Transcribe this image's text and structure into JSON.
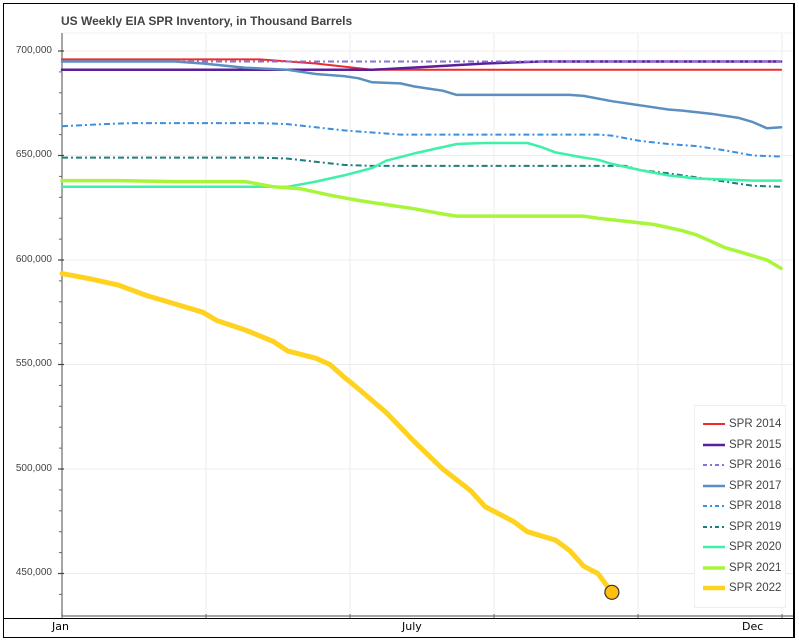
{
  "chart_data": {
    "type": "line",
    "title": "US Weekly EIA SPR Inventory, in Thousand Barrels",
    "xlabel": "",
    "ylabel": "",
    "x_tick_labels": [
      {
        "label": "Jan",
        "week": 0
      },
      {
        "label": "July",
        "week": 24
      },
      {
        "label": "Dec",
        "week": 48
      }
    ],
    "x_range_weeks": [
      0,
      51
    ],
    "y_tick_labels": [
      "450,000",
      "500,000",
      "550,000",
      "600,000",
      "650,000",
      "700,000"
    ],
    "y_ticks": [
      450000,
      500000,
      550000,
      600000,
      650000,
      700000
    ],
    "ylim": [
      430000,
      709000
    ],
    "grid": true,
    "legend_position": "bottom-right",
    "series": [
      {
        "name": "SPR 2014",
        "color": "#ee2b2b",
        "dash": "solid",
        "width": 2,
        "points": [
          [
            0,
            696
          ],
          [
            14,
            696
          ],
          [
            18,
            694
          ],
          [
            22,
            691
          ],
          [
            25,
            691
          ],
          [
            51,
            691
          ]
        ]
      },
      {
        "name": "SPR 2015",
        "color": "#5b1f99",
        "dash": "solid",
        "width": 2.5,
        "points": [
          [
            0,
            691
          ],
          [
            18,
            691
          ],
          [
            22,
            691
          ],
          [
            26,
            692.5
          ],
          [
            30,
            694
          ],
          [
            34,
            695
          ],
          [
            51,
            695
          ]
        ]
      },
      {
        "name": "SPR 2016",
        "color": "#8a6fd9",
        "dash": "dashdot",
        "width": 2,
        "points": [
          [
            0,
            695
          ],
          [
            51,
            695
          ]
        ]
      },
      {
        "name": "SPR 2017",
        "color": "#5a8fc0",
        "dash": "solid",
        "width": 2.5,
        "points": [
          [
            0,
            695
          ],
          [
            8,
            695
          ],
          [
            10,
            694
          ],
          [
            13,
            692
          ],
          [
            16,
            691
          ],
          [
            18,
            689
          ],
          [
            20,
            688
          ],
          [
            21,
            687
          ],
          [
            22,
            685
          ],
          [
            24,
            684.5
          ],
          [
            25,
            683
          ],
          [
            26,
            682
          ],
          [
            27,
            681
          ],
          [
            28,
            679
          ],
          [
            36,
            679
          ],
          [
            37,
            678.5
          ],
          [
            39,
            676
          ],
          [
            41,
            674
          ],
          [
            43,
            672
          ],
          [
            44,
            671.5
          ],
          [
            46,
            670
          ],
          [
            48,
            668
          ],
          [
            49,
            666
          ],
          [
            50,
            663
          ],
          [
            51,
            663.5
          ]
        ]
      },
      {
        "name": "SPR 2018",
        "color": "#3a8fe0",
        "dash": "dashdot",
        "width": 2,
        "points": [
          [
            0,
            664
          ],
          [
            3,
            665
          ],
          [
            5,
            665.5
          ],
          [
            8,
            665.5
          ],
          [
            14,
            665.5
          ],
          [
            16,
            665
          ],
          [
            18,
            663.5
          ],
          [
            20,
            662
          ],
          [
            22,
            661
          ],
          [
            24,
            660
          ],
          [
            38,
            660
          ],
          [
            39,
            659.5
          ],
          [
            41,
            657
          ],
          [
            43,
            655.5
          ],
          [
            45,
            654.5
          ],
          [
            47,
            652.5
          ],
          [
            49,
            650
          ],
          [
            51,
            649.5
          ]
        ]
      },
      {
        "name": "SPR 2019",
        "color": "#1e7d7d",
        "dash": "dashdot",
        "width": 2,
        "points": [
          [
            0,
            649
          ],
          [
            14,
            649
          ],
          [
            16,
            648.5
          ],
          [
            18,
            647
          ],
          [
            20,
            645.5
          ],
          [
            22,
            645
          ],
          [
            38,
            645
          ],
          [
            40,
            645
          ],
          [
            41,
            643
          ],
          [
            43,
            641.5
          ],
          [
            45,
            639.5
          ],
          [
            47,
            637.5
          ],
          [
            49,
            635.5
          ],
          [
            51,
            635
          ]
        ]
      },
      {
        "name": "SPR 2020",
        "color": "#3ef0a8",
        "dash": "solid",
        "width": 2.5,
        "points": [
          [
            0,
            635
          ],
          [
            16,
            635
          ],
          [
            18,
            637.5
          ],
          [
            20,
            640.5
          ],
          [
            22,
            644
          ],
          [
            23,
            647.5
          ],
          [
            25,
            651
          ],
          [
            27,
            654
          ],
          [
            28,
            655.5
          ],
          [
            30,
            656
          ],
          [
            32,
            656
          ],
          [
            33,
            656
          ],
          [
            34,
            654
          ],
          [
            35,
            651.5
          ],
          [
            37,
            649
          ],
          [
            38,
            648
          ],
          [
            39,
            646
          ],
          [
            41,
            643
          ],
          [
            43,
            640.5
          ],
          [
            45,
            639
          ],
          [
            47,
            638.5
          ],
          [
            49,
            638
          ],
          [
            51,
            638
          ]
        ]
      },
      {
        "name": "SPR 2021",
        "color": "#a8f53a",
        "dash": "solid",
        "width": 3.5,
        "points": [
          [
            0,
            638
          ],
          [
            4,
            638
          ],
          [
            8,
            637.5
          ],
          [
            13,
            637.5
          ],
          [
            15,
            635
          ],
          [
            17,
            634
          ],
          [
            19,
            631
          ],
          [
            21,
            628.5
          ],
          [
            23,
            626.5
          ],
          [
            25,
            624.5
          ],
          [
            27,
            622
          ],
          [
            28,
            621
          ],
          [
            35,
            621
          ],
          [
            37,
            621
          ],
          [
            38,
            620
          ],
          [
            40,
            618.5
          ],
          [
            42,
            617
          ],
          [
            44,
            614
          ],
          [
            45,
            612
          ],
          [
            46,
            609
          ],
          [
            47,
            606
          ],
          [
            48,
            604
          ],
          [
            50,
            600
          ],
          [
            51,
            596
          ]
        ]
      },
      {
        "name": "SPR 2022",
        "color": "#ffd21f",
        "dash": "solid",
        "width": 5,
        "points": [
          [
            0,
            593.5
          ],
          [
            2,
            591
          ],
          [
            4,
            588
          ],
          [
            6,
            583
          ],
          [
            8,
            579
          ],
          [
            10,
            575
          ],
          [
            11,
            571
          ],
          [
            13,
            566.5
          ],
          [
            15,
            561
          ],
          [
            16,
            556.5
          ],
          [
            18,
            553
          ],
          [
            19,
            550
          ],
          [
            20,
            544
          ],
          [
            21,
            538.5
          ],
          [
            23,
            527
          ],
          [
            24,
            520
          ],
          [
            25,
            513
          ],
          [
            27,
            500
          ],
          [
            29,
            489.5
          ],
          [
            30,
            482
          ],
          [
            32,
            475
          ],
          [
            33,
            470
          ],
          [
            35,
            466
          ],
          [
            36,
            461
          ],
          [
            37,
            453.5
          ],
          [
            38,
            450
          ],
          [
            39,
            441
          ]
        ],
        "end_marker": {
          "week": 39,
          "value": 441,
          "fill": "#ffbf0d",
          "stroke": "#333",
          "radius": 7
        }
      }
    ]
  },
  "legend": {
    "items": [
      {
        "label": "SPR 2014"
      },
      {
        "label": "SPR 2015"
      },
      {
        "label": "SPR 2016"
      },
      {
        "label": "SPR 2017"
      },
      {
        "label": "SPR 2018"
      },
      {
        "label": "SPR 2019"
      },
      {
        "label": "SPR 2020"
      },
      {
        "label": "SPR 2021"
      },
      {
        "label": "SPR 2022"
      }
    ]
  },
  "axes": {
    "y_labels": [
      "700,000",
      "650,000",
      "600,000",
      "550,000",
      "500,000",
      "450,000"
    ],
    "x_labels": [
      "Jan",
      "July",
      "Dec"
    ]
  }
}
